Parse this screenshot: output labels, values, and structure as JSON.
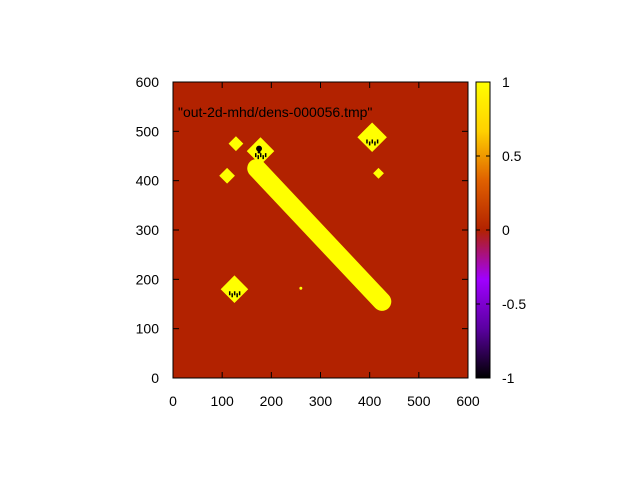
{
  "chart_data": {
    "type": "heatmap",
    "title": "",
    "key_label": "\"out-2d-mhd/dens-000056.tmp\"",
    "xlabel": "",
    "ylabel": "",
    "xlim": [
      0,
      600
    ],
    "ylim": [
      0,
      600
    ],
    "x_ticks": [
      "0",
      "100",
      "200",
      "300",
      "400",
      "500",
      "600"
    ],
    "y_ticks": [
      "0",
      "100",
      "200",
      "300",
      "400",
      "500",
      "600"
    ],
    "colorbar": {
      "range": [
        -1,
        1
      ],
      "ticks": [
        "-1",
        "-0.5",
        "0",
        "0.5",
        "1"
      ],
      "palette": [
        "#000000",
        "#5a00a0",
        "#a000ff",
        "#b22200",
        "#e06000",
        "#ffd000",
        "#ffff00"
      ]
    },
    "background_value": 0.1,
    "features": [
      {
        "shape": "band",
        "from": [
          170,
          425
        ],
        "to": [
          425,
          155
        ],
        "width": 38,
        "value": 1
      },
      {
        "shape": "diamond",
        "center": [
          178,
          460
        ],
        "half_diag": 28,
        "value": 1,
        "dark_spots": true
      },
      {
        "shape": "diamond",
        "center": [
          128,
          475
        ],
        "half_diag": 15,
        "value": 1
      },
      {
        "shape": "diamond",
        "center": [
          110,
          410
        ],
        "half_diag": 16,
        "value": 1
      },
      {
        "shape": "diamond",
        "center": [
          405,
          488
        ],
        "half_diag": 30,
        "value": 1,
        "dark_spots": true
      },
      {
        "shape": "diamond",
        "center": [
          418,
          415
        ],
        "half_diag": 11,
        "value": 1
      },
      {
        "shape": "diamond",
        "center": [
          125,
          180
        ],
        "half_diag": 28,
        "value": 1,
        "dark_spots": true
      },
      {
        "shape": "dot",
        "center": [
          175,
          465
        ],
        "radius": 6,
        "value": -1
      },
      {
        "shape": "dot",
        "center": [
          175,
          458
        ],
        "radius": 3,
        "value": -1
      },
      {
        "shape": "dot",
        "center": [
          260,
          182
        ],
        "radius": 3,
        "value": 1
      }
    ]
  }
}
